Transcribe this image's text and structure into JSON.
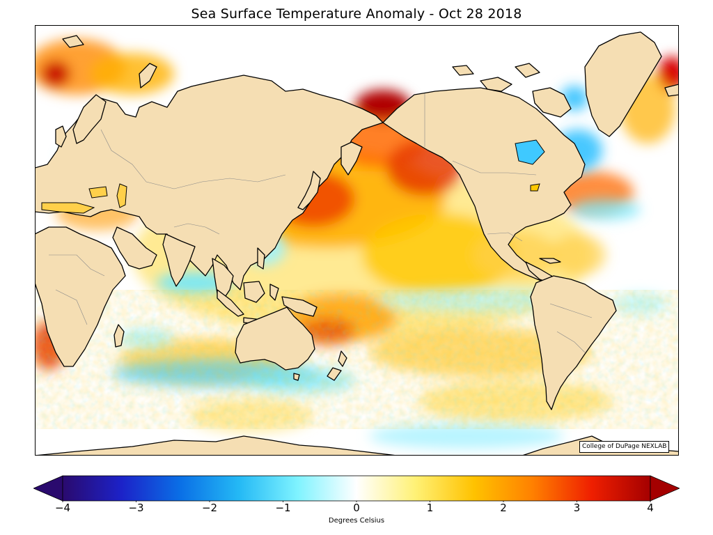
{
  "title": "Sea Surface Temperature Anomaly - Oct 28 2018",
  "credit": "College of DuPage NEXLAB",
  "map": {
    "projection": "equirectangular, centered on the Pacific",
    "land_color": "#f5deb3",
    "ocean_base_color": "#ffffff",
    "features": [
      "continents",
      "country-borders",
      "coastlines",
      "anomaly-field"
    ]
  },
  "colorbar": {
    "label": "Degrees Celsius",
    "min": -4,
    "max": 4,
    "extend": "both",
    "ticks": [
      {
        "value": -4,
        "label": "−4"
      },
      {
        "value": -3,
        "label": "−3"
      },
      {
        "value": -2,
        "label": "−2"
      },
      {
        "value": -1,
        "label": "−1"
      },
      {
        "value": 0,
        "label": "0"
      },
      {
        "value": 1,
        "label": "1"
      },
      {
        "value": 2,
        "label": "2"
      },
      {
        "value": 3,
        "label": "3"
      },
      {
        "value": 4,
        "label": "4"
      }
    ],
    "colors": [
      "#2a0a6e",
      "#1c22c8",
      "#0a6fe6",
      "#24b9f5",
      "#7ff3ff",
      "#ffffff",
      "#fff176",
      "#ffc200",
      "#ff8000",
      "#ef1f00",
      "#a40000"
    ],
    "under_color": "#2a0a6e",
    "over_color": "#a40000"
  }
}
